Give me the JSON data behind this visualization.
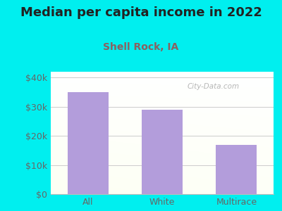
{
  "title": "Median per capita income in 2022",
  "subtitle": "Shell Rock, IA",
  "categories": [
    "All",
    "White",
    "Multirace"
  ],
  "values": [
    35000,
    29000,
    17000
  ],
  "bar_color": "#b39ddb",
  "outer_bg": "#00efef",
  "title_color": "#222222",
  "subtitle_color": "#8a6060",
  "tick_label_color": "#666666",
  "grid_color": "#cccccc",
  "ylim": [
    0,
    42000
  ],
  "yticks": [
    0,
    10000,
    20000,
    30000,
    40000
  ],
  "ytick_labels": [
    "$0",
    "$10k",
    "$20k",
    "$30k",
    "$40k"
  ],
  "watermark": "City-Data.com",
  "title_fontsize": 13,
  "subtitle_fontsize": 10,
  "tick_fontsize": 9
}
